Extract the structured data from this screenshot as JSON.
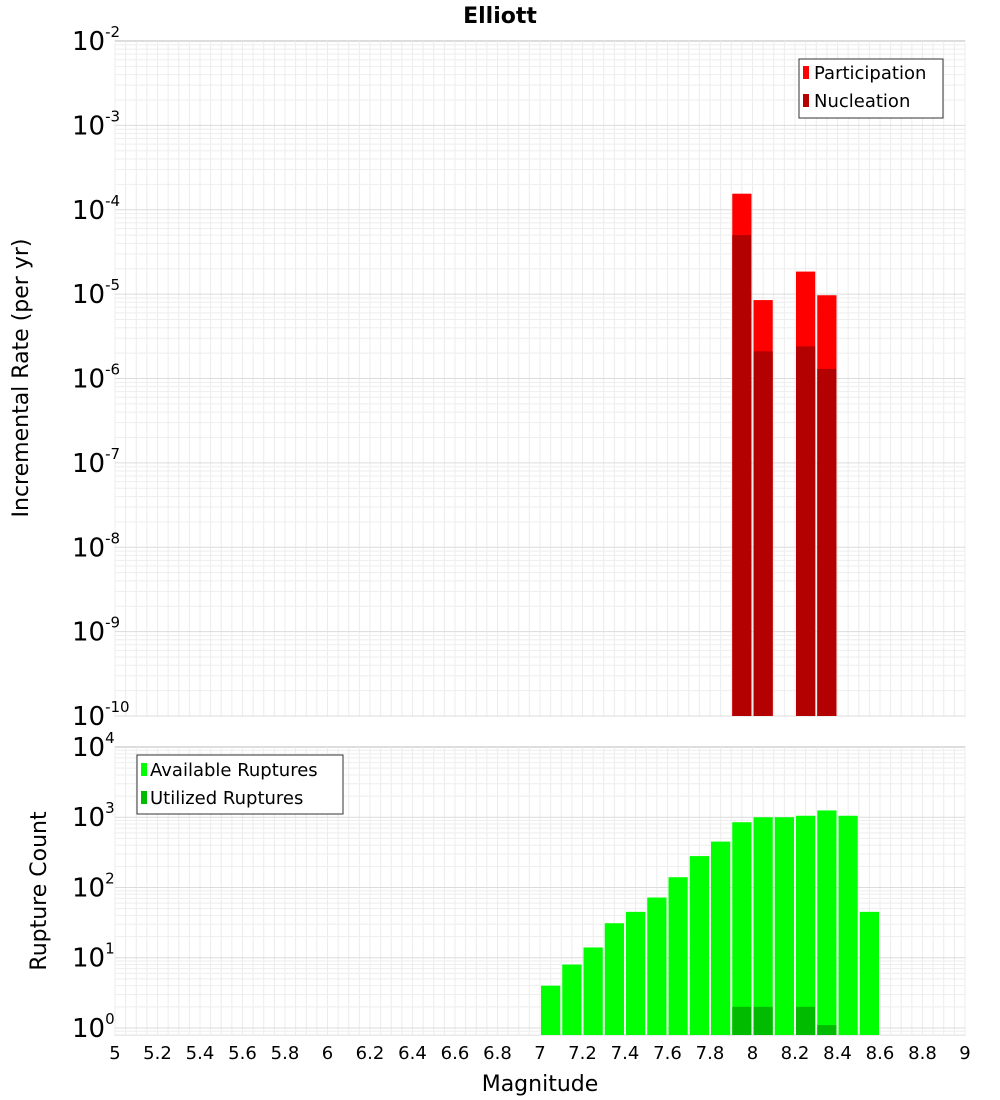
{
  "chart_data": [
    {
      "type": "bar",
      "title": "Elliott",
      "xlabel": "",
      "ylabel": "Incremental Rate (per yr)",
      "yscale": "log",
      "ylim_exp": [
        -10,
        -2
      ],
      "y_ticks": [
        {
          "base": "10",
          "exp": "-2",
          "value": -2
        },
        {
          "base": "10",
          "exp": "-3",
          "value": -3
        },
        {
          "base": "10",
          "exp": "-4",
          "value": -4
        },
        {
          "base": "10",
          "exp": "-5",
          "value": -5
        },
        {
          "base": "10",
          "exp": "-6",
          "value": -6
        },
        {
          "base": "10",
          "exp": "-7",
          "value": -7
        },
        {
          "base": "10",
          "exp": "-8",
          "value": -8
        },
        {
          "base": "10",
          "exp": "-9",
          "value": -9
        },
        {
          "base": "10",
          "exp": "-10",
          "value": -10
        }
      ],
      "xlim": [
        5,
        9
      ],
      "bar_width": 0.1,
      "legend_position": "top-right",
      "series": [
        {
          "name": "Participation",
          "color": "#ff0000",
          "x": [
            7.95,
            8.05,
            8.25,
            8.35
          ],
          "values": [
            0.000155,
            8.5e-06,
            1.85e-05,
            9.7e-06
          ]
        },
        {
          "name": "Nucleation",
          "color": "#b30000",
          "x": [
            7.95,
            8.05,
            8.25,
            8.35
          ],
          "values": [
            5e-05,
            2.1e-06,
            2.4e-06,
            1.3e-06
          ]
        }
      ]
    },
    {
      "type": "bar",
      "title": "",
      "xlabel": "Magnitude",
      "ylabel": "Rupture Count",
      "yscale": "log",
      "ylim_exp": [
        -0.1,
        4
      ],
      "y_ticks": [
        {
          "base": "10",
          "exp": "4",
          "value": 4
        },
        {
          "base": "10",
          "exp": "3",
          "value": 3
        },
        {
          "base": "10",
          "exp": "2",
          "value": 2
        },
        {
          "base": "10",
          "exp": "1",
          "value": 1
        },
        {
          "base": "10",
          "exp": "0",
          "value": 0
        }
      ],
      "xlim": [
        5,
        9
      ],
      "x_ticks": [
        "5",
        "5.2",
        "5.4",
        "5.6",
        "5.8",
        "6",
        "6.2",
        "6.4",
        "6.6",
        "6.8",
        "7",
        "7.2",
        "7.4",
        "7.6",
        "7.8",
        "8",
        "8.2",
        "8.4",
        "8.6",
        "8.8",
        "9"
      ],
      "bar_width": 0.1,
      "legend_position": "top-left",
      "series": [
        {
          "name": "Available Ruptures",
          "color": "#00ff00",
          "x": [
            7.05,
            7.15,
            7.25,
            7.35,
            7.45,
            7.55,
            7.65,
            7.75,
            7.85,
            7.95,
            8.05,
            8.15,
            8.25,
            8.35,
            8.45,
            8.55
          ],
          "values": [
            4,
            8,
            14,
            31,
            45,
            72,
            140,
            280,
            450,
            850,
            1000,
            1000,
            1050,
            1250,
            1050,
            45
          ]
        },
        {
          "name": "Utilized Ruptures",
          "color": "#00bb00",
          "x": [
            7.95,
            8.05,
            8.25,
            8.35
          ],
          "values": [
            2,
            2,
            2,
            1.1
          ]
        }
      ]
    }
  ]
}
